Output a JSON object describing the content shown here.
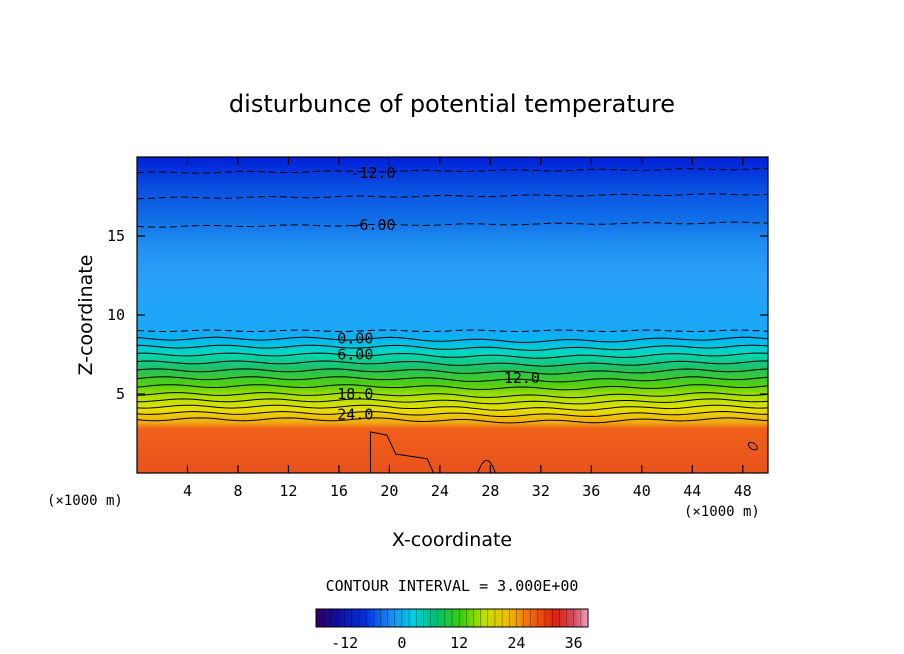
{
  "chart_data": {
    "type": "heatmap",
    "title": "disturbunce of potential temperature",
    "xlabel": "X-coordinate",
    "ylabel": "Z-coordinate",
    "x_units": "(×1000 m)",
    "y_units": "(×1000 m)",
    "xlim": [
      0,
      50
    ],
    "ylim": [
      0,
      20
    ],
    "x_ticks": [
      4,
      8,
      12,
      16,
      20,
      24,
      28,
      32,
      36,
      40,
      44,
      48
    ],
    "y_ticks": [
      5,
      10,
      15
    ],
    "contour_interval_text": "CONTOUR INTERVAL = 3.000E+00",
    "contour_labels": [
      {
        "text": "-12.0",
        "x": 18.7,
        "z": 19.0
      },
      {
        "text": "-6.00",
        "x": 18.7,
        "z": 15.7
      },
      {
        "text": "0.00",
        "x": 17.3,
        "z": 8.5
      },
      {
        "text": "6.00",
        "x": 17.3,
        "z": 7.5
      },
      {
        "text": "12.0",
        "x": 30.5,
        "z": 6.0
      },
      {
        "text": "18.0",
        "x": 17.3,
        "z": 5.0
      },
      {
        "text": "24.0",
        "x": 17.3,
        "z": 3.7
      }
    ],
    "color_scale": {
      "min": -18,
      "max": 39,
      "tick_labels": [
        "-12",
        "0",
        "12",
        "24",
        "36"
      ],
      "tick_values": [
        -12,
        0,
        12,
        24,
        36
      ]
    },
    "grid": false
  }
}
